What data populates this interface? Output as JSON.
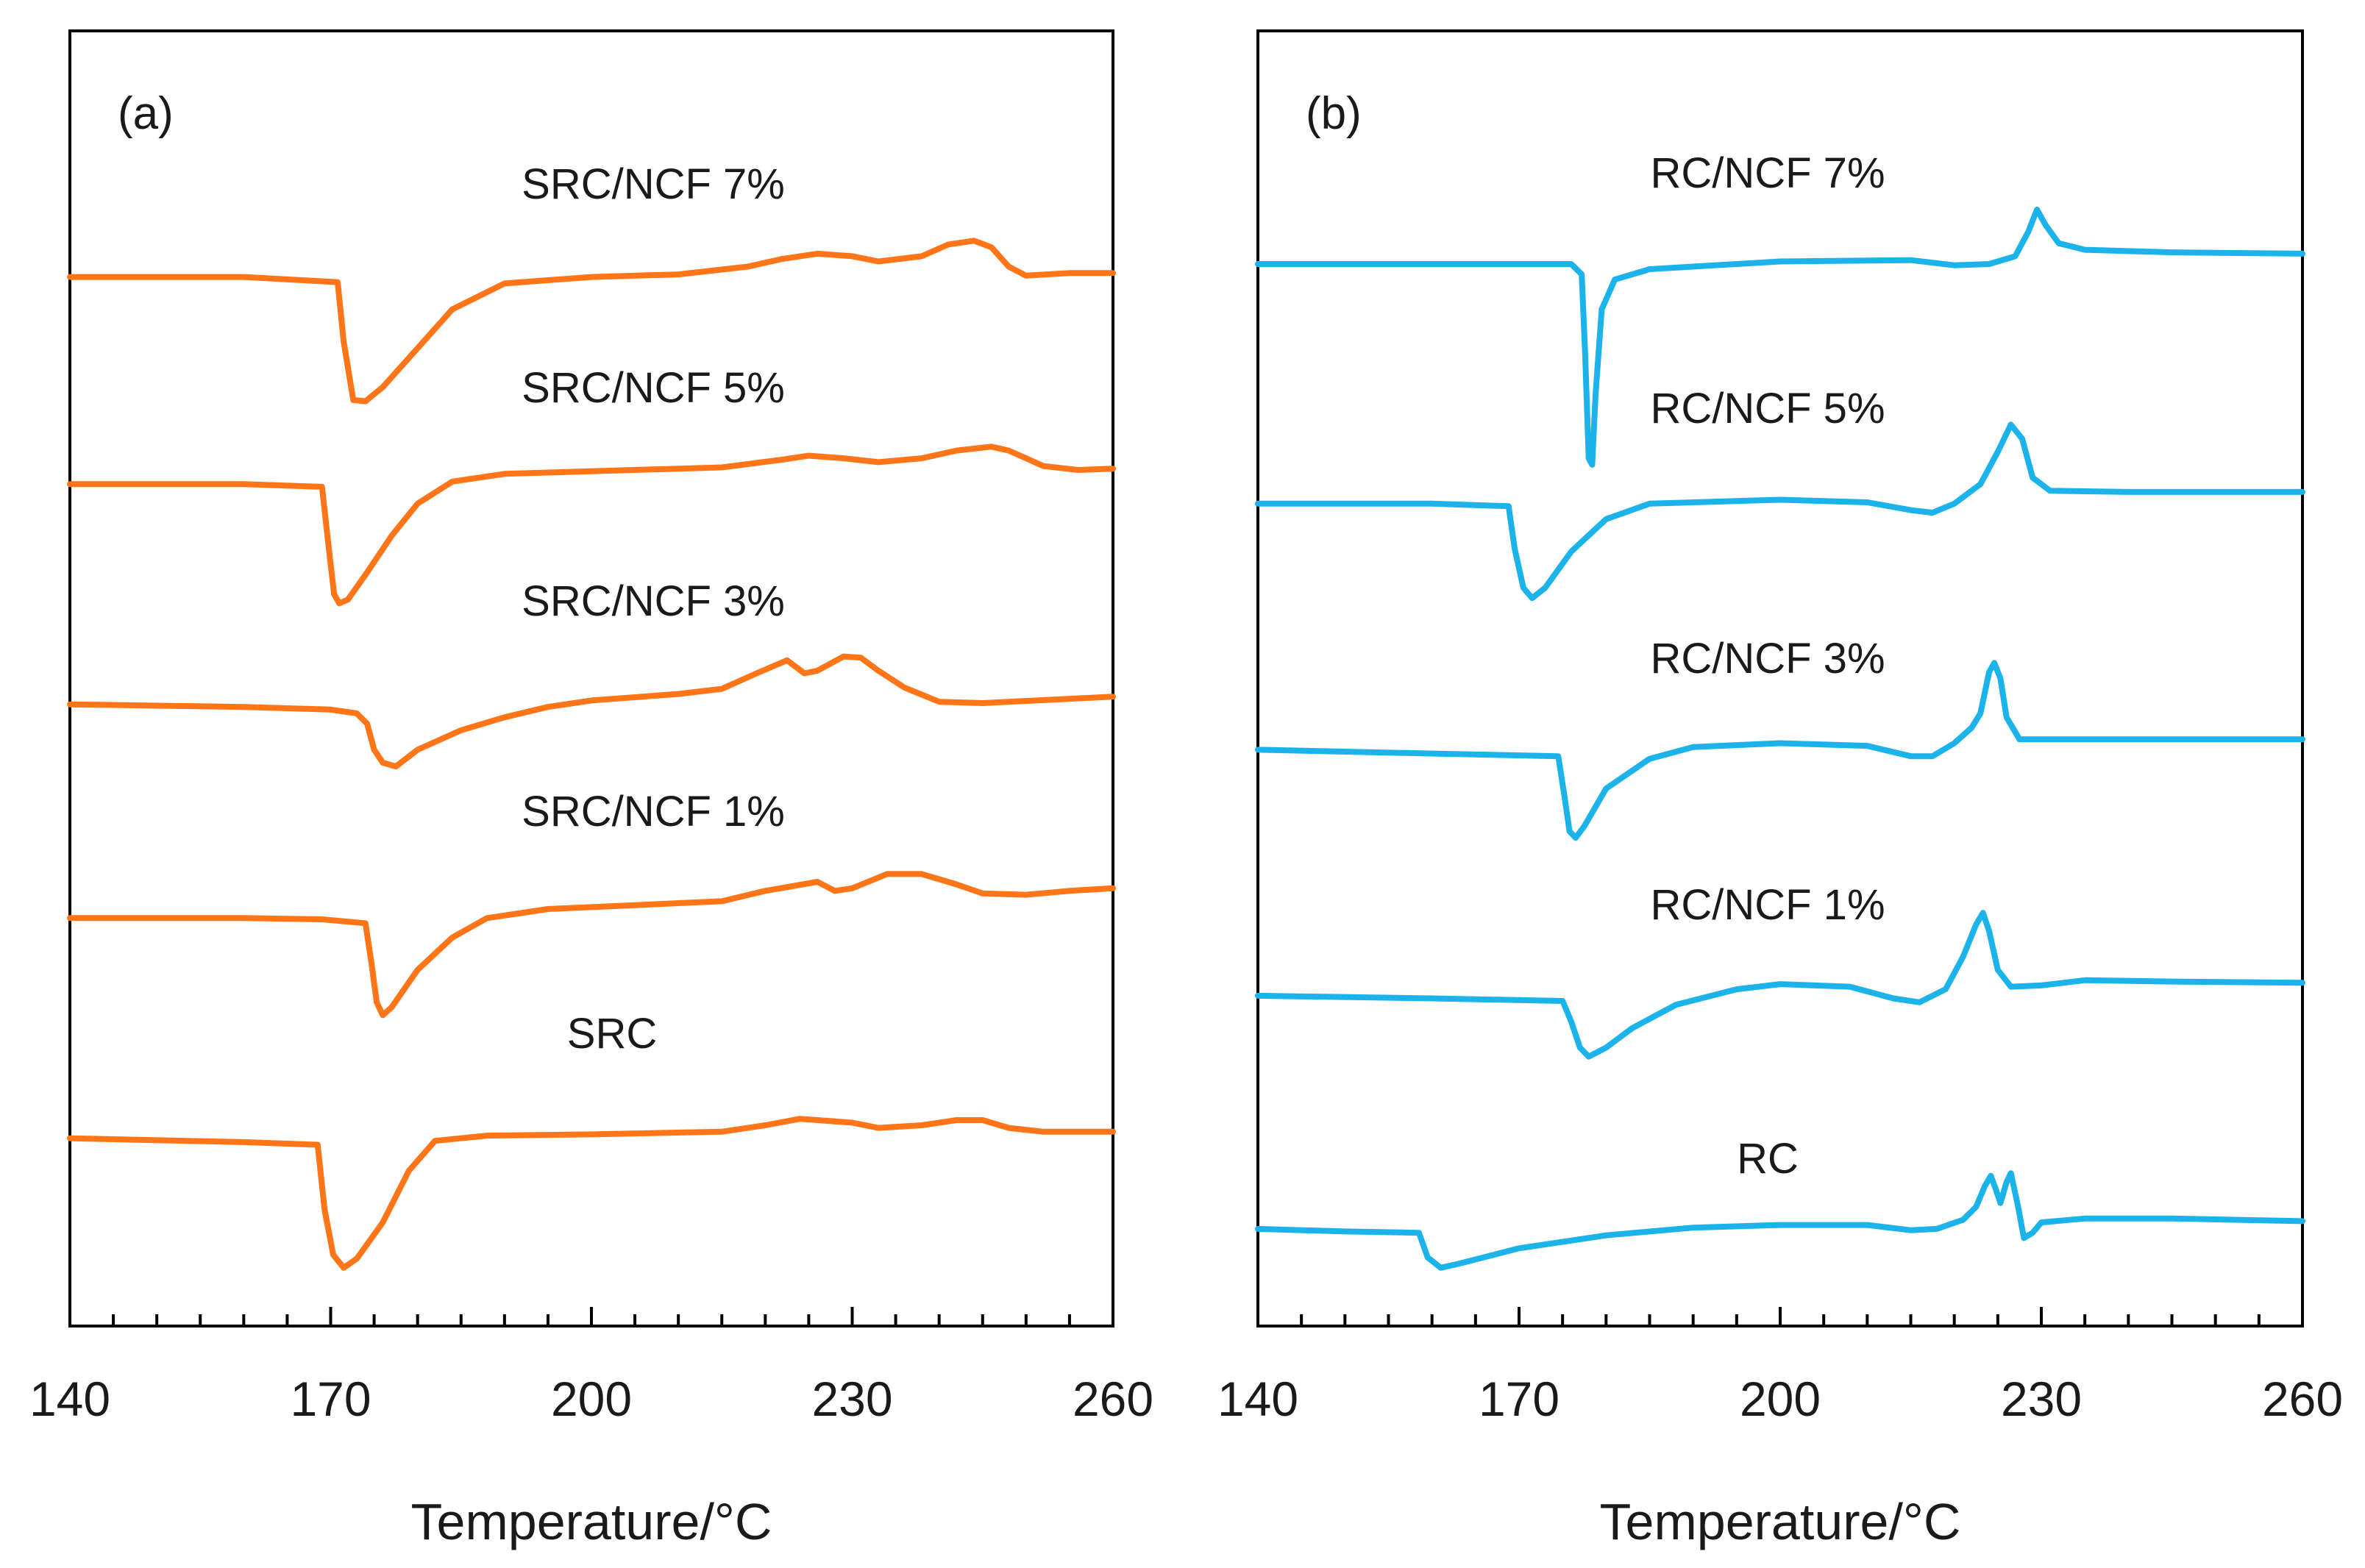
{
  "chart_data": [
    {
      "type": "line",
      "panel_label": "(a)",
      "xlabel": "Temperature/°C",
      "ylabel": "",
      "xlim": [
        140,
        260
      ],
      "xticks": [
        140,
        170,
        200,
        230,
        260
      ],
      "y_axis_ticks_shown": false,
      "grid": false,
      "color": "#FF7518",
      "y_units": "arbitrary (stacked heat flow)",
      "series": [
        {
          "name": "SRC/NCF 7%",
          "label": "SRC/NCF 7%",
          "points": [
            [
              140,
              81
            ],
            [
              160,
              81
            ],
            [
              170.8,
              80.6
            ],
            [
              171.5,
              76
            ],
            [
              172.6,
              71.5
            ],
            [
              174,
              71.4
            ],
            [
              176,
              72.5
            ],
            [
              180,
              75.5
            ],
            [
              184,
              78.5
            ],
            [
              190,
              80.5
            ],
            [
              200,
              81
            ],
            [
              210,
              81.2
            ],
            [
              218,
              81.8
            ],
            [
              222,
              82.4
            ],
            [
              226,
              82.8
            ],
            [
              230,
              82.6
            ],
            [
              233,
              82.2
            ],
            [
              238,
              82.6
            ],
            [
              241,
              83.5
            ],
            [
              244,
              83.8
            ],
            [
              246,
              83.3
            ],
            [
              248,
              81.8
            ],
            [
              250,
              81.1
            ],
            [
              255,
              81.3
            ],
            [
              260,
              81.3
            ]
          ]
        },
        {
          "name": "SRC/NCF 5%",
          "label": "SRC/NCF 5%",
          "points": [
            [
              140,
              65
            ],
            [
              160,
              65
            ],
            [
              169,
              64.8
            ],
            [
              169.8,
              60
            ],
            [
              170.4,
              56.5
            ],
            [
              171,
              55.8
            ],
            [
              172,
              56.1
            ],
            [
              174,
              58
            ],
            [
              177,
              61
            ],
            [
              180,
              63.5
            ],
            [
              184,
              65.2
            ],
            [
              190,
              65.8
            ],
            [
              200,
              66
            ],
            [
              215,
              66.3
            ],
            [
              222,
              66.9
            ],
            [
              225,
              67.2
            ],
            [
              229,
              67
            ],
            [
              233,
              66.7
            ],
            [
              238,
              67
            ],
            [
              242,
              67.6
            ],
            [
              246,
              67.9
            ],
            [
              248,
              67.6
            ],
            [
              252,
              66.4
            ],
            [
              256,
              66.1
            ],
            [
              260,
              66.2
            ]
          ]
        },
        {
          "name": "SRC/NCF 3%",
          "label": "SRC/NCF 3%",
          "points": [
            [
              140,
              48
            ],
            [
              160,
              47.8
            ],
            [
              170,
              47.6
            ],
            [
              173,
              47.3
            ],
            [
              174.2,
              46.5
            ],
            [
              175,
              44.5
            ],
            [
              176,
              43.5
            ],
            [
              177.5,
              43.2
            ],
            [
              180,
              44.5
            ],
            [
              185,
              46
            ],
            [
              190,
              47
            ],
            [
              195,
              47.8
            ],
            [
              200,
              48.3
            ],
            [
              210,
              48.8
            ],
            [
              215,
              49.2
            ],
            [
              219,
              50.4
            ],
            [
              222.5,
              51.4
            ],
            [
              224.5,
              50.4
            ],
            [
              226,
              50.6
            ],
            [
              229,
              51.7
            ],
            [
              231,
              51.6
            ],
            [
              233,
              50.6
            ],
            [
              236,
              49.3
            ],
            [
              240,
              48.2
            ],
            [
              245,
              48.1
            ],
            [
              260,
              48.6
            ]
          ]
        },
        {
          "name": "SRC/NCF 1%",
          "label": "SRC/NCF 1%",
          "points": [
            [
              140,
              31.5
            ],
            [
              160,
              31.5
            ],
            [
              169,
              31.4
            ],
            [
              174,
              31.1
            ],
            [
              174.7,
              28
            ],
            [
              175.3,
              25
            ],
            [
              176,
              24
            ],
            [
              177,
              24.6
            ],
            [
              180,
              27.5
            ],
            [
              184,
              30
            ],
            [
              188,
              31.5
            ],
            [
              195,
              32.2
            ],
            [
              205,
              32.5
            ],
            [
              215,
              32.8
            ],
            [
              220,
              33.6
            ],
            [
              226,
              34.3
            ],
            [
              228,
              33.6
            ],
            [
              230,
              33.8
            ],
            [
              234,
              34.9
            ],
            [
              238,
              34.9
            ],
            [
              242,
              34.1
            ],
            [
              245,
              33.4
            ],
            [
              250,
              33.3
            ],
            [
              255,
              33.6
            ],
            [
              260,
              33.8
            ]
          ]
        },
        {
          "name": "SRC",
          "label": "SRC",
          "points": [
            [
              140,
              14.5
            ],
            [
              160,
              14.2
            ],
            [
              168.5,
              14
            ],
            [
              169.3,
              9
            ],
            [
              170.3,
              5.5
            ],
            [
              171.5,
              4.5
            ],
            [
              173,
              5.2
            ],
            [
              176,
              8
            ],
            [
              179,
              12
            ],
            [
              182,
              14.3
            ],
            [
              188,
              14.7
            ],
            [
              200,
              14.8
            ],
            [
              215,
              15
            ],
            [
              220,
              15.5
            ],
            [
              224,
              16
            ],
            [
              226,
              15.9
            ],
            [
              230,
              15.7
            ],
            [
              233,
              15.3
            ],
            [
              238,
              15.5
            ],
            [
              242,
              15.9
            ],
            [
              245,
              15.9
            ],
            [
              248,
              15.3
            ],
            [
              252,
              15
            ],
            [
              260,
              15
            ]
          ]
        }
      ],
      "annotations": [
        "(a)",
        "SRC/NCF 7%",
        "SRC/NCF 5%",
        "SRC/NCF 3%",
        "SRC/NCF 1%",
        "SRC"
      ]
    },
    {
      "type": "line",
      "panel_label": "(b)",
      "xlabel": "Temperature/°C",
      "ylabel": "",
      "xlim": [
        140,
        260
      ],
      "xticks": [
        140,
        170,
        200,
        230,
        260
      ],
      "y_axis_ticks_shown": false,
      "grid": false,
      "color": "#1CB3EA",
      "y_units": "arbitrary (stacked heat flow)",
      "series": [
        {
          "name": "RC/NCF 7%",
          "label": "RC/NCF 7%",
          "points": [
            [
              140,
              82
            ],
            [
              165,
              82
            ],
            [
              176,
              82
            ],
            [
              177.2,
              81.2
            ],
            [
              177.6,
              75
            ],
            [
              178,
              67
            ],
            [
              178.4,
              66.5
            ],
            [
              178.8,
              72
            ],
            [
              179.5,
              78.5
            ],
            [
              181,
              80.8
            ],
            [
              185,
              81.6
            ],
            [
              200,
              82.2
            ],
            [
              215,
              82.3
            ],
            [
              220,
              81.9
            ],
            [
              224,
              82
            ],
            [
              227,
              82.6
            ],
            [
              228.5,
              84.5
            ],
            [
              229.5,
              86.2
            ],
            [
              230.5,
              85
            ],
            [
              232,
              83.6
            ],
            [
              235,
              83.1
            ],
            [
              245,
              82.9
            ],
            [
              260,
              82.8
            ]
          ]
        },
        {
          "name": "RC/NCF 5%",
          "label": "RC/NCF 5%",
          "points": [
            [
              140,
              63.5
            ],
            [
              160,
              63.5
            ],
            [
              168.8,
              63.3
            ],
            [
              169.5,
              60
            ],
            [
              170.5,
              57
            ],
            [
              171.5,
              56.2
            ],
            [
              173,
              57
            ],
            [
              176,
              59.8
            ],
            [
              180,
              62.3
            ],
            [
              185,
              63.5
            ],
            [
              200,
              63.8
            ],
            [
              210,
              63.6
            ],
            [
              215,
              63
            ],
            [
              217.5,
              62.8
            ],
            [
              220,
              63.5
            ],
            [
              223,
              65
            ],
            [
              225,
              67.5
            ],
            [
              226.5,
              69.6
            ],
            [
              227.8,
              68.5
            ],
            [
              229,
              65.5
            ],
            [
              231,
              64.5
            ],
            [
              240,
              64.4
            ],
            [
              260,
              64.4
            ]
          ]
        },
        {
          "name": "RC/NCF 3%",
          "label": "RC/NCF 3%",
          "points": [
            [
              140,
              44.5
            ],
            [
              160,
              44.2
            ],
            [
              174.5,
              44
            ],
            [
              175.2,
              41
            ],
            [
              175.8,
              38.2
            ],
            [
              176.5,
              37.7
            ],
            [
              177.5,
              38.6
            ],
            [
              180,
              41.5
            ],
            [
              185,
              43.8
            ],
            [
              190,
              44.7
            ],
            [
              200,
              45
            ],
            [
              210,
              44.8
            ],
            [
              215,
              44
            ],
            [
              217.5,
              44
            ],
            [
              220,
              45
            ],
            [
              222,
              46.2
            ],
            [
              223,
              47.3
            ],
            [
              224,
              50.5
            ],
            [
              224.6,
              51.2
            ],
            [
              225.3,
              50
            ],
            [
              226,
              47
            ],
            [
              227.5,
              45.3
            ],
            [
              235,
              45.3
            ],
            [
              260,
              45.3
            ]
          ]
        },
        {
          "name": "RC/NCF 1%",
          "label": "RC/NCF 1%",
          "points": [
            [
              140,
              25.5
            ],
            [
              160,
              25.3
            ],
            [
              175,
              25.1
            ],
            [
              176,
              23.5
            ],
            [
              177,
              21.5
            ],
            [
              178,
              20.8
            ],
            [
              180,
              21.5
            ],
            [
              183,
              23
            ],
            [
              188,
              24.8
            ],
            [
              195,
              26
            ],
            [
              200,
              26.4
            ],
            [
              208,
              26.2
            ],
            [
              213,
              25.3
            ],
            [
              216,
              25
            ],
            [
              219,
              26
            ],
            [
              221,
              28.5
            ],
            [
              222.5,
              31
            ],
            [
              223.3,
              31.9
            ],
            [
              224,
              30.5
            ],
            [
              225,
              27.5
            ],
            [
              226.5,
              26.2
            ],
            [
              230,
              26.3
            ],
            [
              235,
              26.7
            ],
            [
              245,
              26.6
            ],
            [
              260,
              26.5
            ]
          ]
        },
        {
          "name": "RC",
          "label": "RC",
          "points": [
            [
              140,
              7.5
            ],
            [
              150,
              7.3
            ],
            [
              158.5,
              7.2
            ],
            [
              159.5,
              5.3
            ],
            [
              161,
              4.5
            ],
            [
              163,
              4.8
            ],
            [
              170,
              6
            ],
            [
              180,
              7
            ],
            [
              190,
              7.6
            ],
            [
              200,
              7.8
            ],
            [
              210,
              7.8
            ],
            [
              215,
              7.4
            ],
            [
              218,
              7.5
            ],
            [
              221,
              8.2
            ],
            [
              222.5,
              9.2
            ],
            [
              223.5,
              10.8
            ],
            [
              224.2,
              11.6
            ],
            [
              224.8,
              10.5
            ],
            [
              225.3,
              9.5
            ],
            [
              226,
              11.1
            ],
            [
              226.5,
              11.8
            ],
            [
              227.3,
              9.3
            ],
            [
              228,
              6.8
            ],
            [
              229,
              7.2
            ],
            [
              230,
              8
            ],
            [
              235,
              8.3
            ],
            [
              245,
              8.3
            ],
            [
              260,
              8.1
            ]
          ]
        }
      ],
      "annotations": [
        "(b)",
        "RC/NCF 7%",
        "RC/NCF 5%",
        "RC/NCF 3%",
        "RC/NCF 1%",
        "RC"
      ]
    }
  ]
}
